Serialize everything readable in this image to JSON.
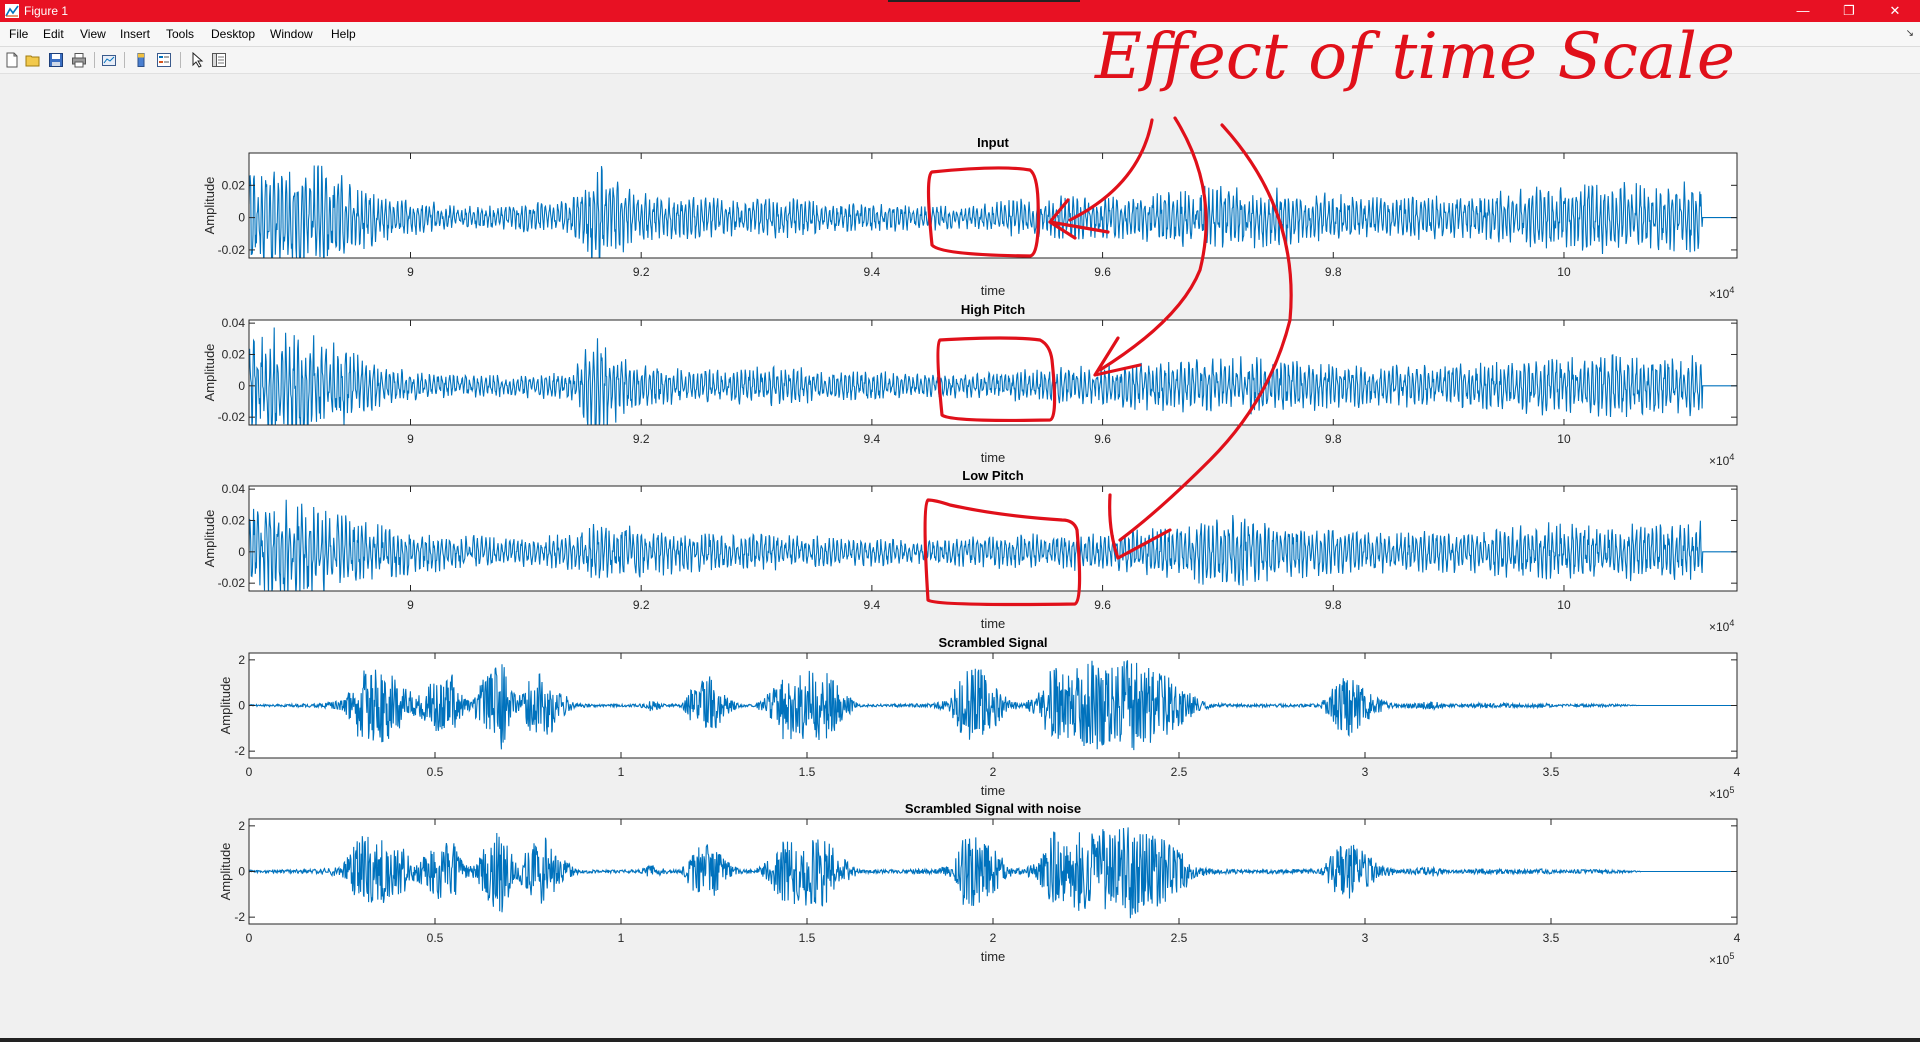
{
  "window": {
    "title": "Figure 1",
    "controls": [
      "minimize",
      "restore",
      "close"
    ],
    "accent": "#e81123"
  },
  "menu": [
    "File",
    "Edit",
    "View",
    "Insert",
    "Tools",
    "Desktop",
    "Window",
    "Help"
  ],
  "toolbar": {
    "icons": [
      "new-figure-icon",
      "open-file-icon",
      "save-icon",
      "print-icon",
      "link-plot-icon",
      "insert-colorbar-icon",
      "insert-legend-icon",
      "edit-plot-arrow-icon",
      "property-inspector-icon"
    ]
  },
  "annotation": {
    "handwritten_text": "Effect of time Scale",
    "color": "#e0101a"
  },
  "chart_data": [
    {
      "type": "line",
      "title": "Input",
      "xlabel": "time",
      "ylabel": "Amplitude",
      "xlim": [
        88600,
        101500
      ],
      "ylim": [
        -0.025,
        0.04
      ],
      "xticks": [
        90000,
        92000,
        94000,
        96000,
        98000,
        100000
      ],
      "xticklabels": [
        "9",
        "9.2",
        "9.4",
        "9.6",
        "9.8",
        "10"
      ],
      "x_multiplier": "×10^4",
      "yticks": [
        -0.02,
        0,
        0.02
      ],
      "yticklabels": [
        "-0.02",
        "0",
        "0.02"
      ],
      "series_color": "#0072bd",
      "series": [
        {
          "x": [
            88600,
            89000,
            89200,
            89600,
            90000,
            90400,
            90800,
            91000,
            91400,
            91600,
            92000,
            92400,
            92800,
            93200,
            93600,
            94000,
            94400,
            94800,
            95200,
            95600,
            96000,
            96400,
            96800,
            97200,
            97600,
            98000,
            98400,
            98800,
            99200,
            99600,
            100000,
            100400,
            100800,
            101200,
            101500
          ],
          "amplitude": [
            0.035,
            0.035,
            0.035,
            0.02,
            0.012,
            0.008,
            0.008,
            0.01,
            0.012,
            0.04,
            0.016,
            0.014,
            0.012,
            0.014,
            0.01,
            0.01,
            0.008,
            0.008,
            0.012,
            0.014,
            0.014,
            0.016,
            0.02,
            0.022,
            0.018,
            0.016,
            0.014,
            0.014,
            0.016,
            0.018,
            0.022,
            0.024,
            0.022,
            0.024,
            0.026
          ]
        }
      ]
    },
    {
      "type": "line",
      "title": "High Pitch",
      "xlabel": "time",
      "ylabel": "Amplitude",
      "xlim": [
        88600,
        101500
      ],
      "ylim": [
        -0.025,
        0.042
      ],
      "xticks": [
        90000,
        92000,
        94000,
        96000,
        98000,
        100000
      ],
      "xticklabels": [
        "9",
        "9.2",
        "9.4",
        "9.6",
        "9.8",
        "10"
      ],
      "x_multiplier": "×10^4",
      "yticks": [
        -0.02,
        0,
        0.02,
        0.04
      ],
      "yticklabels": [
        "-0.02",
        "0",
        "0.02",
        "0.04"
      ],
      "series_color": "#0072bd",
      "series": [
        {
          "x": [
            88600,
            89000,
            89200,
            89600,
            90000,
            90400,
            90800,
            91000,
            91400,
            91600,
            92000,
            92400,
            92800,
            93200,
            93600,
            94000,
            94400,
            94800,
            95200,
            95600,
            96000,
            96400,
            96800,
            97200,
            97600,
            98000,
            98400,
            98800,
            99200,
            99600,
            100000,
            100400,
            100800,
            101200,
            101500
          ],
          "amplitude": [
            0.04,
            0.04,
            0.035,
            0.018,
            0.01,
            0.008,
            0.008,
            0.008,
            0.01,
            0.038,
            0.014,
            0.012,
            0.012,
            0.014,
            0.01,
            0.01,
            0.008,
            0.008,
            0.01,
            0.012,
            0.014,
            0.016,
            0.018,
            0.02,
            0.018,
            0.016,
            0.014,
            0.014,
            0.016,
            0.018,
            0.02,
            0.022,
            0.02,
            0.022,
            0.024
          ]
        }
      ]
    },
    {
      "type": "line",
      "title": "Low Pitch",
      "xlabel": "time",
      "ylabel": "Amplitude",
      "xlim": [
        88600,
        101500
      ],
      "ylim": [
        -0.025,
        0.042
      ],
      "xticks": [
        90000,
        92000,
        94000,
        96000,
        98000,
        100000
      ],
      "xticklabels": [
        "9",
        "9.2",
        "9.4",
        "9.6",
        "9.8",
        "10"
      ],
      "x_multiplier": "×10^4",
      "yticks": [
        -0.02,
        0,
        0.02,
        0.04
      ],
      "yticklabels": [
        "-0.02",
        "0",
        "0.02",
        "0.04"
      ],
      "series_color": "#0072bd",
      "series": [
        {
          "x": [
            88600,
            89000,
            89200,
            89600,
            90000,
            90400,
            90800,
            91000,
            91400,
            91600,
            92000,
            92400,
            92800,
            93200,
            93600,
            94000,
            94400,
            94800,
            95200,
            95600,
            96000,
            96400,
            96800,
            97200,
            97600,
            98000,
            98400,
            98800,
            99200,
            99600,
            100000,
            100400,
            100800,
            101200,
            101500
          ],
          "amplitude": [
            0.035,
            0.035,
            0.03,
            0.02,
            0.016,
            0.012,
            0.01,
            0.01,
            0.012,
            0.02,
            0.018,
            0.014,
            0.012,
            0.012,
            0.01,
            0.01,
            0.008,
            0.01,
            0.012,
            0.012,
            0.014,
            0.016,
            0.022,
            0.024,
            0.018,
            0.016,
            0.014,
            0.014,
            0.016,
            0.018,
            0.02,
            0.02,
            0.018,
            0.02,
            0.022
          ]
        }
      ]
    },
    {
      "type": "line",
      "title": "Scrambled Signal",
      "xlabel": "time",
      "ylabel": "Amplitude",
      "xlim": [
        0,
        400000
      ],
      "ylim": [
        -2.3,
        2.3
      ],
      "xticks": [
        0,
        50000,
        100000,
        150000,
        200000,
        250000,
        300000,
        350000,
        400000
      ],
      "xticklabels": [
        "0",
        "0.5",
        "1",
        "1.5",
        "2",
        "2.5",
        "3",
        "3.5",
        "4"
      ],
      "x_multiplier": "×10^5",
      "yticks": [
        -2,
        0,
        2
      ],
      "yticklabels": [
        "-2",
        "0",
        "2"
      ],
      "series_color": "#0072bd",
      "series": [
        {
          "x": [
            0,
            18000,
            25000,
            30000,
            35000,
            40000,
            45000,
            50000,
            55000,
            58000,
            60000,
            62000,
            68000,
            72000,
            76000,
            80000,
            84000,
            88000,
            95000,
            105000,
            108000,
            112000,
            116000,
            120000,
            124000,
            128000,
            132000,
            136000,
            140000,
            144000,
            148000,
            152000,
            156000,
            160000,
            164000,
            168000,
            172000,
            178000,
            184000,
            188000,
            192000,
            196000,
            200000,
            204000,
            208000,
            212000,
            216000,
            220000,
            224000,
            228000,
            232000,
            236000,
            240000,
            244000,
            248000,
            252000,
            256000,
            260000,
            265000,
            270000,
            275000,
            280000,
            284000,
            288000,
            292000,
            296000,
            300000,
            305000,
            310000,
            318000,
            322000,
            326000,
            332000,
            340000,
            348000,
            352000,
            356000,
            362000,
            368000,
            374000,
            400000
          ],
          "amplitude": [
            0.04,
            0.08,
            0.22,
            1.6,
            1.7,
            1.3,
            0.4,
            1.2,
            1.4,
            0.3,
            0.2,
            1.0,
            2.0,
            0.3,
            1.3,
            1.5,
            0.6,
            0.1,
            0.05,
            0.06,
            0.3,
            0.08,
            0.06,
            1.0,
            1.3,
            0.5,
            0.07,
            0.06,
            0.6,
            1.6,
            1.4,
            1.7,
            1.4,
            0.6,
            0.07,
            0.05,
            0.06,
            0.08,
            0.1,
            0.25,
            1.5,
            1.7,
            1.1,
            0.3,
            0.07,
            0.5,
            1.8,
            1.4,
            1.9,
            2.0,
            1.7,
            2.2,
            1.7,
            1.6,
            1.2,
            0.7,
            0.2,
            0.08,
            0.08,
            0.06,
            0.08,
            0.07,
            0.08,
            0.07,
            1.0,
            1.4,
            0.8,
            0.22,
            0.07,
            0.2,
            0.08,
            0.06,
            0.12,
            0.08,
            0.1,
            0.05,
            0.06,
            0.07,
            0.06,
            0.0,
            0.0
          ]
        }
      ]
    },
    {
      "type": "line",
      "title": "Scrambled Signal with noise",
      "xlabel": "time",
      "ylabel": "Amplitude",
      "xlim": [
        0,
        400000
      ],
      "ylim": [
        -2.3,
        2.3
      ],
      "xticks": [
        0,
        50000,
        100000,
        150000,
        200000,
        250000,
        300000,
        350000,
        400000
      ],
      "xticklabels": [
        "0",
        "0.5",
        "1",
        "1.5",
        "2",
        "2.5",
        "3",
        "3.5",
        "4"
      ],
      "x_multiplier": "×10^5",
      "yticks": [
        -2,
        0,
        2
      ],
      "yticklabels": [
        "-2",
        "0",
        "2"
      ],
      "series_color": "#0072bd",
      "series": [
        {
          "x": [
            0,
            18000,
            25000,
            30000,
            35000,
            40000,
            45000,
            50000,
            55000,
            58000,
            60000,
            62000,
            68000,
            72000,
            76000,
            80000,
            84000,
            88000,
            95000,
            105000,
            108000,
            112000,
            116000,
            120000,
            124000,
            128000,
            132000,
            136000,
            140000,
            144000,
            148000,
            152000,
            156000,
            160000,
            164000,
            168000,
            172000,
            178000,
            184000,
            188000,
            192000,
            196000,
            200000,
            204000,
            208000,
            212000,
            216000,
            220000,
            224000,
            228000,
            232000,
            236000,
            240000,
            244000,
            248000,
            252000,
            256000,
            260000,
            265000,
            270000,
            275000,
            280000,
            284000,
            288000,
            292000,
            296000,
            300000,
            305000,
            310000,
            318000,
            322000,
            326000,
            332000,
            340000,
            348000,
            352000,
            356000,
            362000,
            368000,
            374000,
            400000
          ],
          "amplitude": [
            0.06,
            0.1,
            0.24,
            1.6,
            1.7,
            1.3,
            0.4,
            1.2,
            1.4,
            0.3,
            0.22,
            1.0,
            2.0,
            0.3,
            1.3,
            1.5,
            0.6,
            0.12,
            0.07,
            0.08,
            0.3,
            0.1,
            0.08,
            1.0,
            1.3,
            0.5,
            0.09,
            0.08,
            0.6,
            1.6,
            1.4,
            1.7,
            1.4,
            0.6,
            0.09,
            0.07,
            0.08,
            0.1,
            0.12,
            0.27,
            1.5,
            1.7,
            1.1,
            0.3,
            0.09,
            0.5,
            1.8,
            1.4,
            1.9,
            2.0,
            1.7,
            2.2,
            1.7,
            1.6,
            1.2,
            0.7,
            0.22,
            0.1,
            0.1,
            0.08,
            0.1,
            0.09,
            0.1,
            0.09,
            1.0,
            1.4,
            0.8,
            0.24,
            0.09,
            0.22,
            0.1,
            0.08,
            0.14,
            0.1,
            0.12,
            0.07,
            0.08,
            0.09,
            0.08,
            0.02,
            0.0
          ]
        }
      ]
    }
  ]
}
